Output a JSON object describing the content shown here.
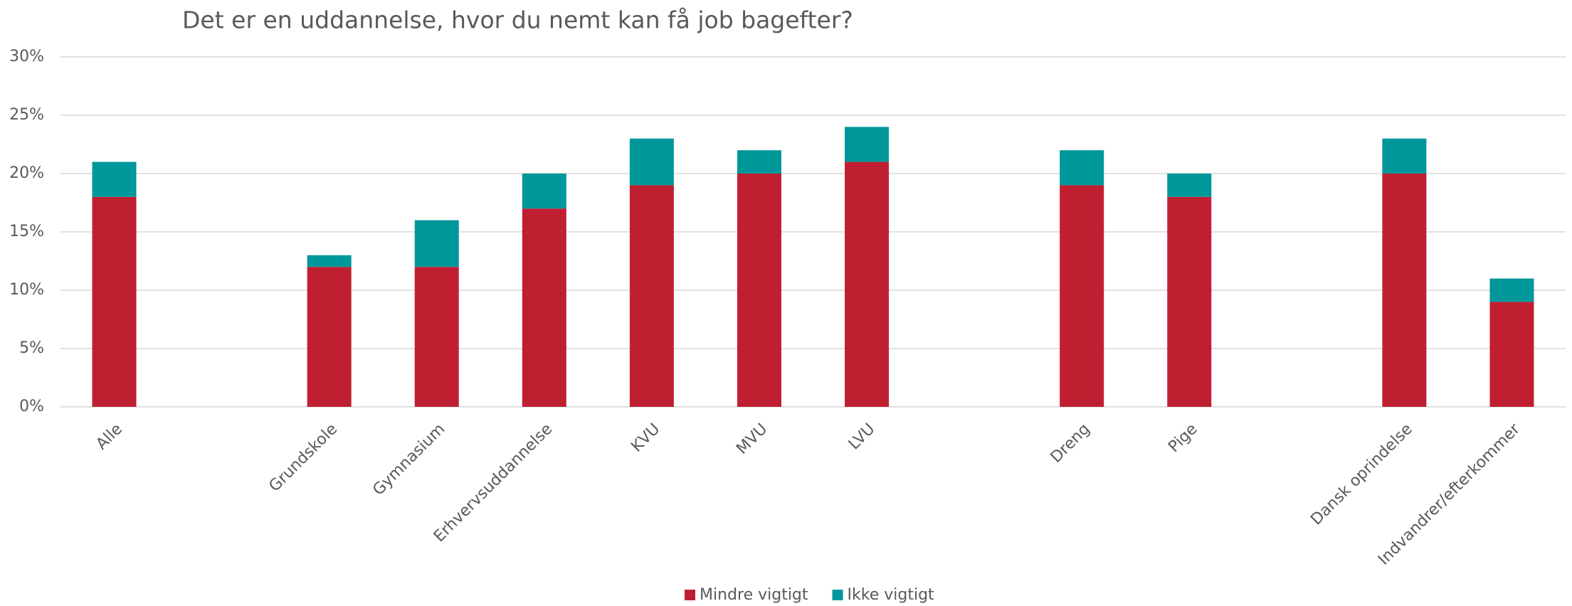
{
  "chart_data": {
    "type": "stacked_bar",
    "title": "Det er en uddannelse, hvor du nemt kan få job bagefter?",
    "categories": [
      "Alle",
      null,
      "Grundskole",
      "Gymnasium",
      "Erhvervsuddannelse",
      "KVU",
      "MVU",
      "LVU",
      null,
      "Dreng",
      "Pige",
      null,
      "Dansk oprindelse",
      "Indvandrer/efterkommer"
    ],
    "series": [
      {
        "name": "Mindre vigtigt",
        "color": "#c01f32",
        "values": [
          18,
          null,
          12,
          12,
          17,
          19,
          20,
          21,
          null,
          19,
          18,
          null,
          20,
          9
        ]
      },
      {
        "name": "Ikke vigtigt",
        "color": "#00979b",
        "values": [
          3,
          null,
          1,
          4,
          3,
          4,
          2,
          3,
          null,
          3,
          2,
          null,
          3,
          2
        ]
      }
    ],
    "ylim": [
      0,
      30
    ],
    "yticks": [
      {
        "value": 0,
        "label": "0%"
      },
      {
        "value": 5,
        "label": "5%"
      },
      {
        "value": 10,
        "label": "10%"
      },
      {
        "value": 15,
        "label": "15%"
      },
      {
        "value": 20,
        "label": "20%"
      },
      {
        "value": 25,
        "label": "25%"
      },
      {
        "value": 30,
        "label": "30%"
      }
    ],
    "grid": true,
    "legend": "bottom"
  }
}
